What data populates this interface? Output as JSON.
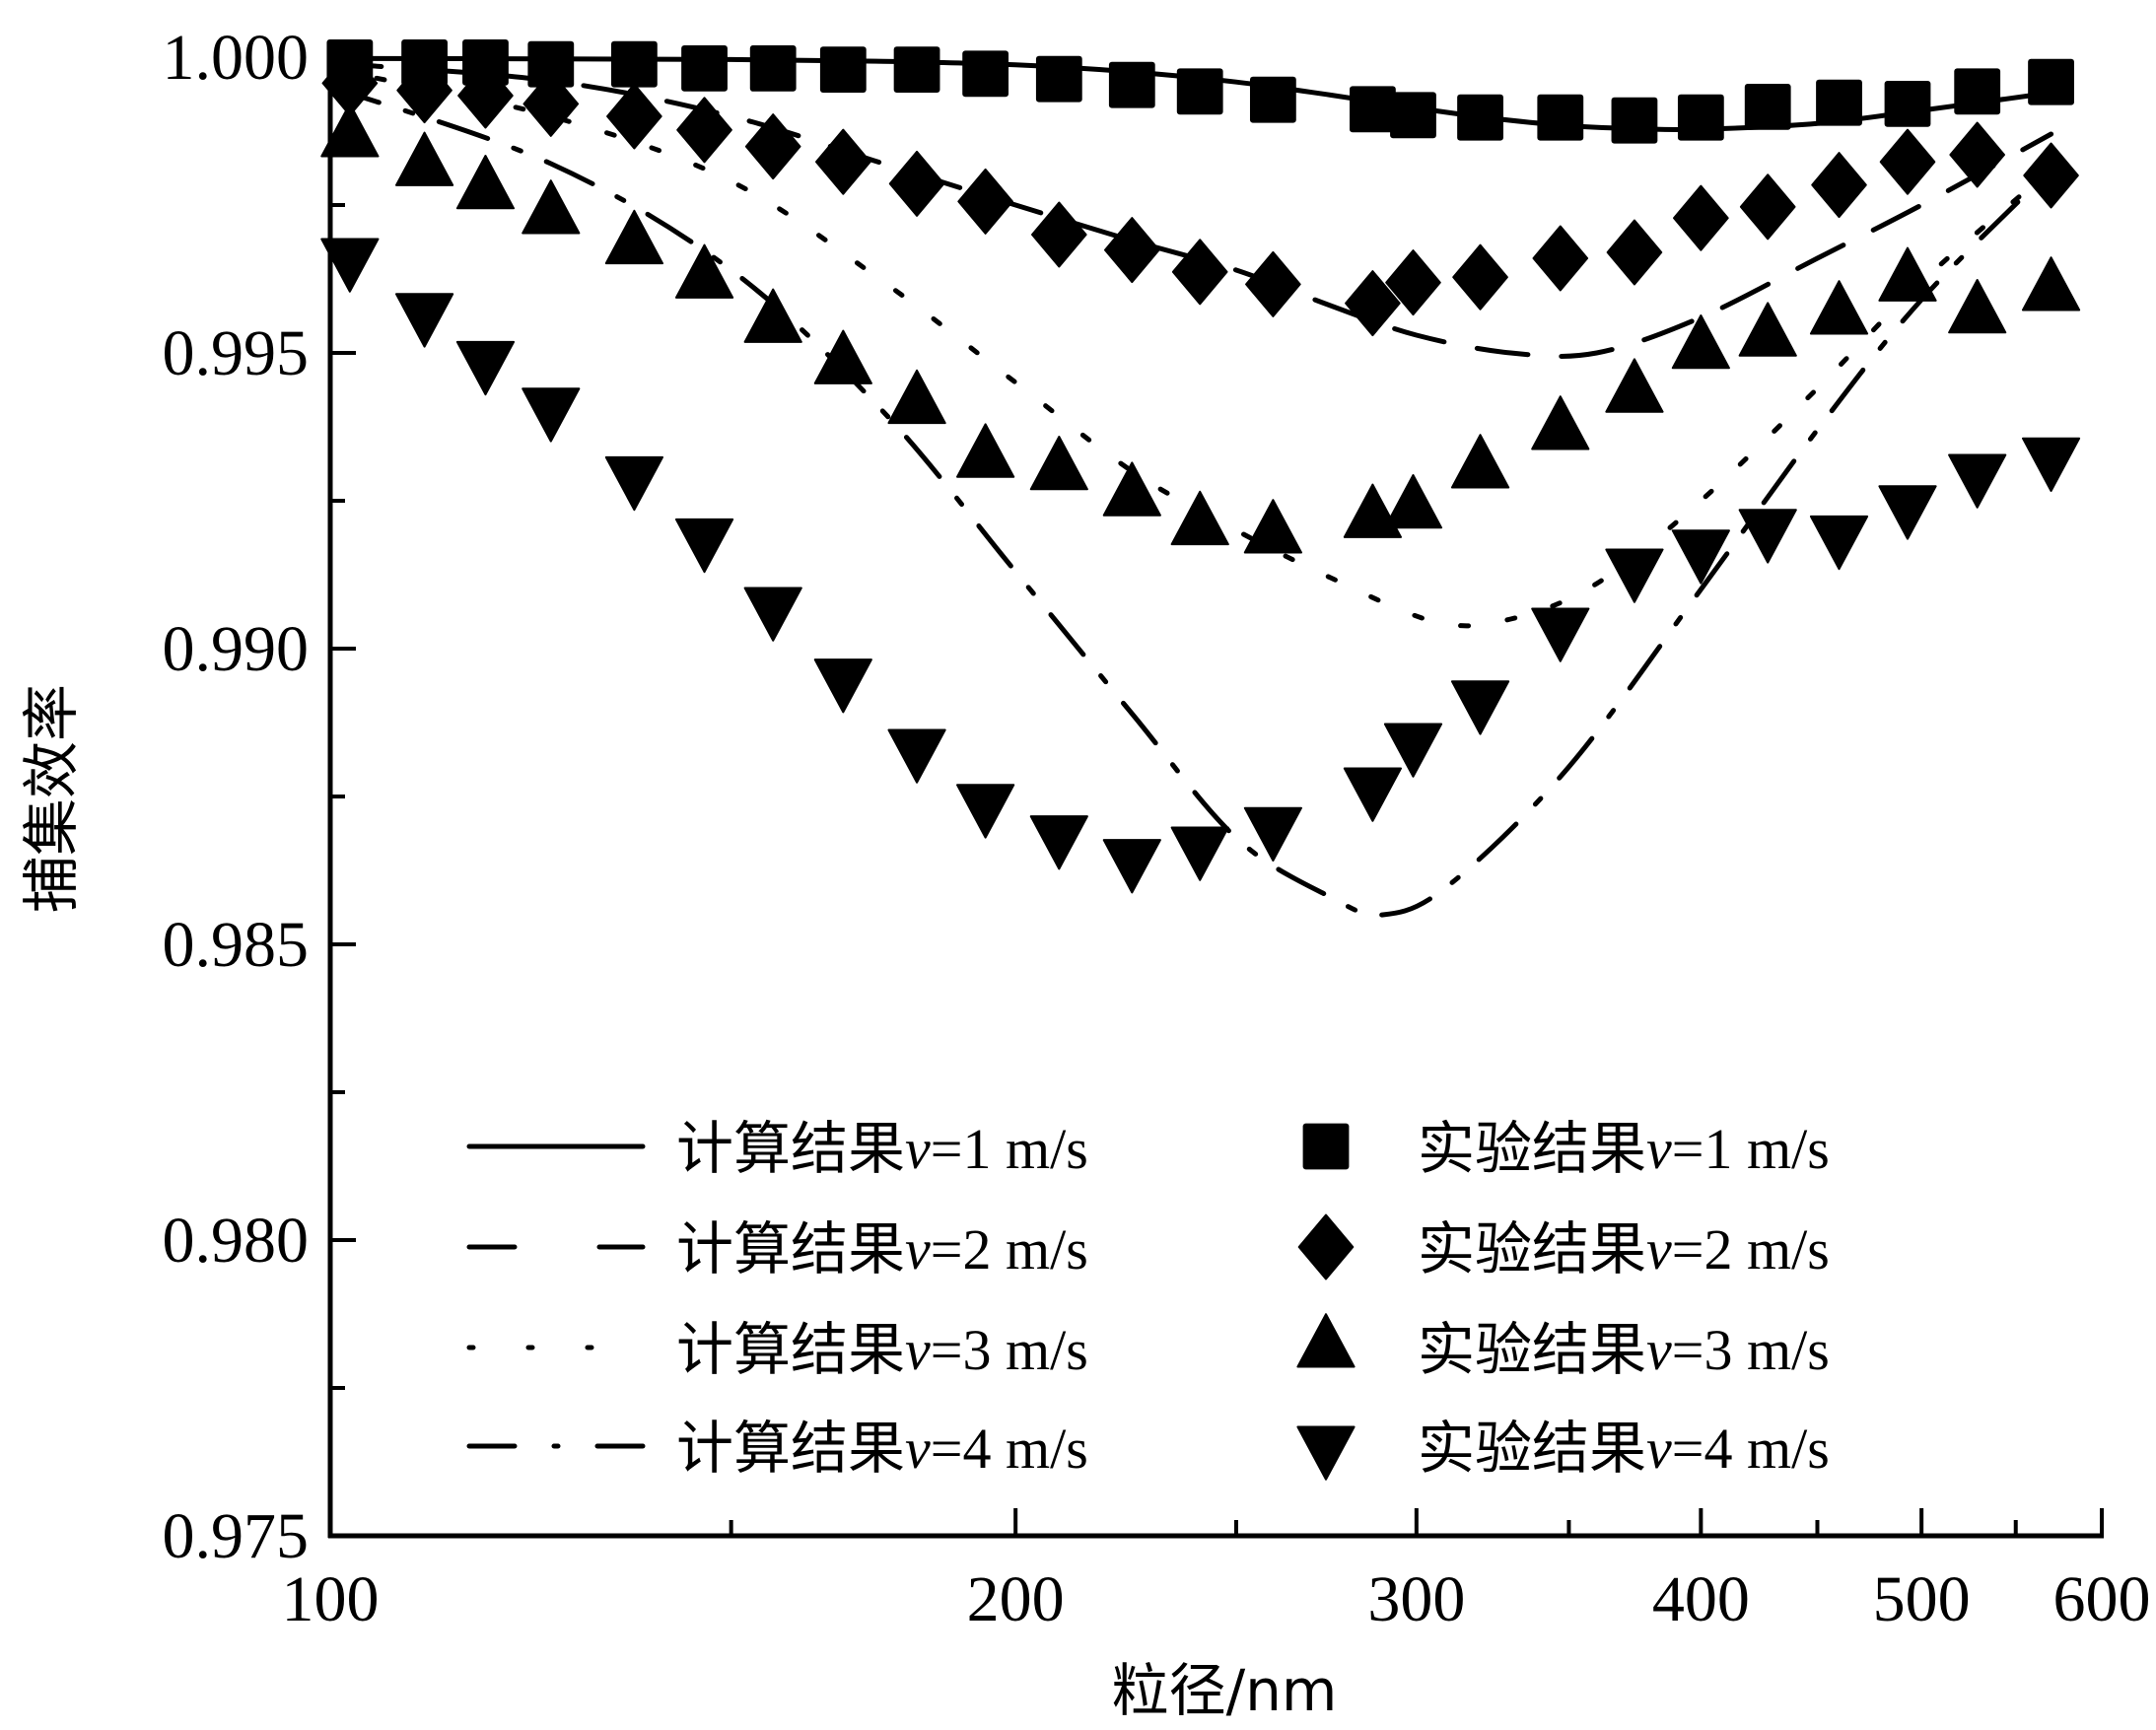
{
  "chart_data": {
    "type": "line",
    "title": "",
    "xlabel": "粒径/nm",
    "ylabel": "捕集效率",
    "xscale": "log",
    "xlim": [
      100,
      600
    ],
    "ylim": [
      0.975,
      1.0
    ],
    "grid": false,
    "legend_position": "bottom-center",
    "x_ticks": [
      100,
      200,
      300,
      400,
      500,
      600
    ],
    "x_tick_labels": [
      "100",
      "200",
      "300",
      "400",
      "500",
      "600"
    ],
    "x_minor_ticks": [
      150,
      250,
      350,
      450,
      550
    ],
    "y_ticks": [
      1.0,
      0.995,
      0.99,
      0.985,
      0.98,
      0.975
    ],
    "y_tick_labels": [
      "1.000",
      "0.995",
      "0.990",
      "0.985",
      "0.980",
      "0.975"
    ],
    "y_minor_ticks": [
      0.9975,
      0.9925,
      0.9875,
      0.9825,
      0.9775
    ],
    "experiment_x": [
      102,
      110,
      117,
      125,
      136,
      146,
      156.5,
      168,
      181,
      194,
      209,
      225,
      241,
      259.5,
      287,
      299,
      320,
      347,
      374,
      400,
      428,
      460,
      493,
      529,
      570
    ],
    "series": [
      {
        "name": "计算结果v=1 m/s",
        "kind": "line",
        "style": "solid",
        "x": [
          100,
          125,
          150,
          175,
          200,
          225,
          250,
          275,
          300,
          325,
          350,
          375,
          400,
          450,
          500,
          570
        ],
        "values": [
          0.99998,
          0.99997,
          0.99996,
          0.99993,
          0.99987,
          0.99975,
          0.99958,
          0.99936,
          0.99914,
          0.99896,
          0.99884,
          0.99879,
          0.99878,
          0.99888,
          0.9991,
          0.9994
        ]
      },
      {
        "name": "计算结果v=2 m/s",
        "kind": "line",
        "style": "dashed",
        "x": [
          100,
          125,
          150,
          175,
          200,
          225,
          250,
          275,
          300,
          330,
          360,
          400,
          450,
          500,
          570
        ],
        "values": [
          0.9999,
          0.9996,
          0.999,
          0.9982,
          0.9975,
          0.9969,
          0.9964,
          0.9958,
          0.9953,
          0.995,
          0.995,
          0.9956,
          0.9966,
          0.9975,
          0.9987
        ]
      },
      {
        "name": "计算结果v=3 m/s",
        "kind": "line",
        "style": "dotted",
        "x": [
          100,
          125,
          150,
          175,
          200,
          225,
          250,
          275,
          306,
          330,
          360,
          400,
          450,
          500,
          570
        ],
        "values": [
          0.9998,
          0.999,
          0.9979,
          0.9962,
          0.9945,
          0.993,
          0.992,
          0.9912,
          0.99045,
          0.9905,
          0.9911,
          0.9925,
          0.9944,
          0.9962,
          0.9981
        ]
      },
      {
        "name": "计算结果v=4 m/s",
        "kind": "line",
        "style": "dashdot",
        "x": [
          100,
          125,
          150,
          175,
          200,
          225,
          250,
          275,
          290,
          310,
          350,
          400,
          450,
          500,
          570
        ],
        "values": [
          0.9995,
          0.9982,
          0.9964,
          0.994,
          0.9913,
          0.9889,
          0.9868,
          0.9858,
          0.9855,
          0.986,
          0.988,
          0.991,
          0.9937,
          0.9959,
          0.9981
        ]
      },
      {
        "name": "实验结果v=1 m/s",
        "kind": "scatter",
        "marker": "square",
        "values": [
          0.99991,
          0.99991,
          0.99991,
          0.99988,
          0.99988,
          0.99981,
          0.99981,
          0.99979,
          0.99979,
          0.99972,
          0.99963,
          0.99953,
          0.99942,
          0.99928,
          0.99912,
          0.99902,
          0.99898,
          0.99898,
          0.99893,
          0.99898,
          0.99916,
          0.99923,
          0.99921,
          0.99942,
          0.99958
        ]
      },
      {
        "name": "实验结果v=2 m/s",
        "kind": "scatter",
        "marker": "diamond",
        "values": [
          0.99956,
          0.99944,
          0.99935,
          0.99921,
          0.999,
          0.99877,
          0.99849,
          0.99823,
          0.99786,
          0.99756,
          0.997,
          0.99674,
          0.99637,
          0.99616,
          0.99584,
          0.99619,
          0.99628,
          0.9966,
          0.9967,
          0.99728,
          0.99747,
          0.99784,
          0.99823,
          0.99835,
          0.998
        ]
      },
      {
        "name": "实验结果v=3 m/s",
        "kind": "scatter",
        "marker": "triangle-up",
        "values": [
          0.99865,
          0.99816,
          0.99777,
          0.99735,
          0.99684,
          0.99626,
          0.99551,
          0.99481,
          0.99414,
          0.99323,
          0.99302,
          0.99258,
          0.99209,
          0.99195,
          0.99221,
          0.99237,
          0.99305,
          0.9937,
          0.99433,
          0.99507,
          0.99528,
          0.99565,
          0.99621,
          0.99567,
          0.99605
        ]
      },
      {
        "name": "实验结果v=4 m/s",
        "kind": "scatter",
        "marker": "triangle-down",
        "values": [
          0.9966,
          0.99567,
          0.99486,
          0.99407,
          0.99291,
          0.99186,
          0.9907,
          0.98949,
          0.9883,
          0.98737,
          0.98684,
          0.98644,
          0.98665,
          0.98698,
          0.98765,
          0.9884,
          0.98912,
          0.99035,
          0.99135,
          0.99167,
          0.99202,
          0.99191,
          0.99242,
          0.99295,
          0.99323
        ]
      }
    ],
    "legend": [
      {
        "prefix": "计算结果",
        "var": "v",
        "suffix": "=1 m/s",
        "symbol": "solid"
      },
      {
        "prefix": "计算结果",
        "var": "v",
        "suffix": "=2 m/s",
        "symbol": "dashed"
      },
      {
        "prefix": "计算结果",
        "var": "v",
        "suffix": "=3 m/s",
        "symbol": "dotted"
      },
      {
        "prefix": "计算结果",
        "var": "v",
        "suffix": "=4 m/s",
        "symbol": "dashdot"
      },
      {
        "prefix": "实验结果",
        "var": "v",
        "suffix": "=1 m/s",
        "symbol": "square"
      },
      {
        "prefix": "实验结果",
        "var": "v",
        "suffix": "=2 m/s",
        "symbol": "diamond"
      },
      {
        "prefix": "实验结果",
        "var": "v",
        "suffix": "=3 m/s",
        "symbol": "triangle-up"
      },
      {
        "prefix": "实验结果",
        "var": "v",
        "suffix": "=4 m/s",
        "symbol": "triangle-down"
      }
    ],
    "colors": {
      "ink": "#000000",
      "background": "#ffffff"
    }
  }
}
